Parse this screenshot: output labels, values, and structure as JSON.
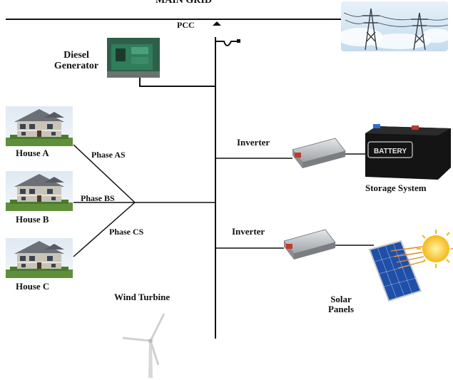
{
  "labels": {
    "main_grid": "MAIN GRID",
    "pcc": "PCC",
    "diesel_line1": "Diesel",
    "diesel_line2": "Generator",
    "house_a": "House A",
    "house_b": "House B",
    "house_c": "House C",
    "phase_as": "Phase AS",
    "phase_bs": "Phase BS",
    "phase_cs": "Phase CS",
    "inverter_top": "Inverter",
    "inverter_bottom": "Inverter",
    "storage_system": "Storage System",
    "battery_text": "BATTERY",
    "wind_turbine": "Wind Turbine",
    "solar_line1": "Solar",
    "solar_line2": "Panels"
  },
  "colors": {
    "bus_line": "#111111",
    "sky": "#cfe3f2",
    "house_wall": "#c9c4b8",
    "grass": "#5f8f3a",
    "generator": "#2f7d5a",
    "inverter": "#b9bcc0",
    "battery": "#1b1b1b",
    "solar_panel": "#1f4fa8",
    "sun": "#f7c22a"
  }
}
